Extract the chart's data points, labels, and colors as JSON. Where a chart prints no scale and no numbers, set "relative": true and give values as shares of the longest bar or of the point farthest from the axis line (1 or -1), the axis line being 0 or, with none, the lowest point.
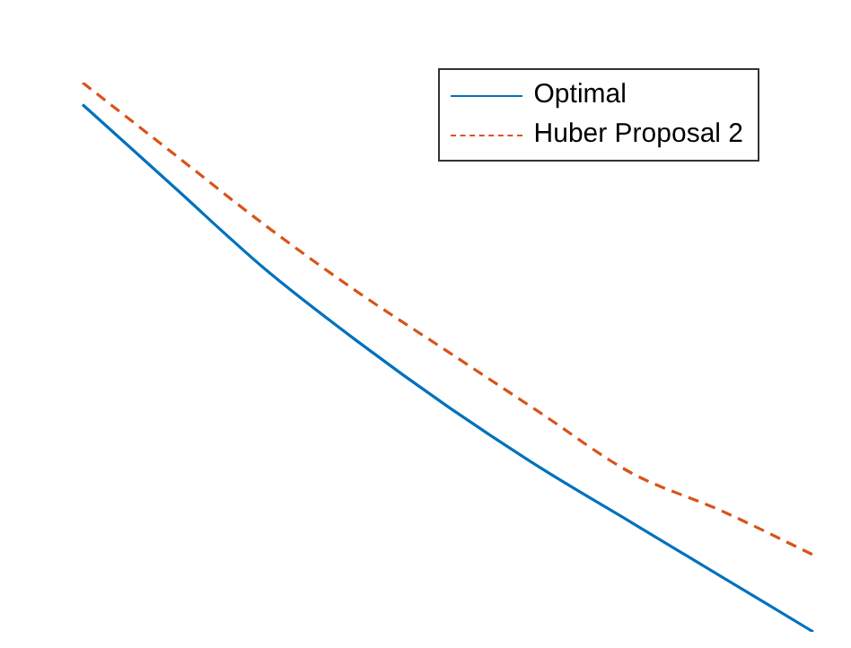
{
  "chart_data": {
    "type": "line",
    "relative": true,
    "legend": "top right",
    "categories": [
      null,
      null,
      null,
      null,
      null,
      null,
      null,
      null,
      null
    ],
    "series": [
      {
        "name": "Optimal",
        "color": "#0072bd",
        "line_style": "solid",
        "values": [
          0.96,
          0.81,
          0.66,
          0.53,
          0.41,
          0.3,
          0.2,
          0.1,
          0
        ]
      },
      {
        "name": "Huber Proposal 2",
        "color": "#d95319",
        "line_style": "dashed",
        "values": [
          1,
          0.87,
          0.74,
          0.62,
          0.51,
          0.4,
          0.29,
          0.22,
          0.14
        ]
      }
    ]
  }
}
